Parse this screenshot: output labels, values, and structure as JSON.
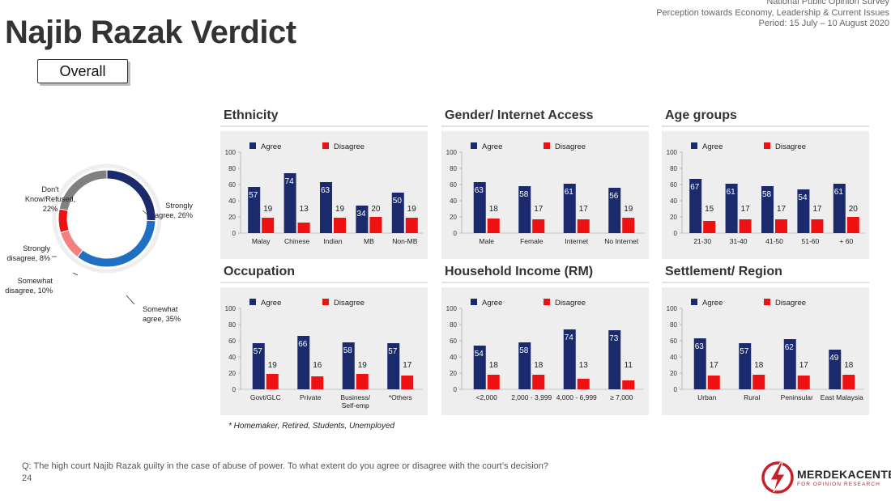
{
  "header": {
    "title": "Najib Razak Verdict",
    "tag": "Overall",
    "survey_lines": [
      "National Public Opinion Survey",
      "Perception towards Economy, Leadership & Current Issues",
      "Period: 15 July – 10 August 2020"
    ]
  },
  "colors": {
    "agree": "#1a2a6c",
    "disagree": "#ee1111",
    "strongly_agree": "#1a2a6c",
    "somewhat_agree": "#1f6fc2",
    "somewhat_disagree": "#f28080",
    "strongly_disagree": "#ee1111",
    "dont_know": "#808080"
  },
  "chart_data": [
    {
      "type": "pie",
      "title": "",
      "slices": [
        {
          "label": "Strongly agree, 26%",
          "value": 26,
          "color": "#1a2a6c"
        },
        {
          "label": "Somewhat agree, 35%",
          "value": 35,
          "color": "#1f6fc2"
        },
        {
          "label": "Somewhat disagree, 10%",
          "value": 10,
          "color": "#f28080"
        },
        {
          "label": "Strongly disagree, 8%",
          "value": 8,
          "color": "#ee1111"
        },
        {
          "label": "Don't Know/Refused, 22%",
          "value": 22,
          "color": "#808080"
        }
      ]
    },
    {
      "type": "bar",
      "title": "Ethnicity",
      "categories": [
        "Malay",
        "Chinese",
        "Indian",
        "MB",
        "Non-MB"
      ],
      "series": [
        {
          "name": "Agree",
          "values": [
            57,
            74,
            63,
            34,
            50
          ]
        },
        {
          "name": "Disagree",
          "values": [
            19,
            13,
            19,
            20,
            19
          ]
        }
      ],
      "ylim": [
        0,
        100
      ],
      "yticks": [
        0,
        20,
        40,
        60,
        80,
        100
      ],
      "legend": "top"
    },
    {
      "type": "bar",
      "title": "Gender/ Internet Access",
      "categories": [
        "Male",
        "Female",
        "Internet",
        "No Internet"
      ],
      "series": [
        {
          "name": "Agree",
          "values": [
            63,
            58,
            61,
            56
          ]
        },
        {
          "name": "Disagree",
          "values": [
            18,
            17,
            17,
            19
          ]
        }
      ],
      "ylim": [
        0,
        100
      ],
      "yticks": [
        0,
        20,
        40,
        60,
        80,
        100
      ],
      "legend": "top"
    },
    {
      "type": "bar",
      "title": "Age groups",
      "categories": [
        "21-30",
        "31-40",
        "41-50",
        "51-60",
        "+ 60"
      ],
      "series": [
        {
          "name": "Agree",
          "values": [
            67,
            61,
            58,
            54,
            61
          ]
        },
        {
          "name": "Disagree",
          "values": [
            15,
            17,
            17,
            17,
            20
          ]
        }
      ],
      "ylim": [
        0,
        100
      ],
      "yticks": [
        0,
        20,
        40,
        60,
        80,
        100
      ],
      "legend": "top"
    },
    {
      "type": "bar",
      "title": "Occupation",
      "categories": [
        "Govt/GLC",
        "Private",
        "Business/ Self-emp",
        "*Others"
      ],
      "series": [
        {
          "name": "Agree",
          "values": [
            57,
            66,
            58,
            57
          ]
        },
        {
          "name": "Disagree",
          "values": [
            19,
            16,
            19,
            17
          ]
        }
      ],
      "ylim": [
        0,
        100
      ],
      "yticks": [
        0,
        20,
        40,
        60,
        80,
        100
      ],
      "legend": "top"
    },
    {
      "type": "bar",
      "title": "Household Income (RM)",
      "categories": [
        "<2,000",
        "2,000 - 3,999",
        "4,000 - 6,999",
        "≥ 7,000"
      ],
      "series": [
        {
          "name": "Agree",
          "values": [
            54,
            58,
            74,
            73
          ]
        },
        {
          "name": "Disagree",
          "values": [
            18,
            18,
            13,
            11
          ]
        }
      ],
      "ylim": [
        0,
        100
      ],
      "yticks": [
        0,
        20,
        40,
        60,
        80,
        100
      ],
      "legend": "top"
    },
    {
      "type": "bar",
      "title": "Settlement/ Region",
      "categories": [
        "Urban",
        "Rural",
        "Peninsular",
        "East Malaysia"
      ],
      "series": [
        {
          "name": "Agree",
          "values": [
            63,
            57,
            62,
            49
          ]
        },
        {
          "name": "Disagree",
          "values": [
            17,
            18,
            17,
            18
          ]
        }
      ],
      "ylim": [
        0,
        100
      ],
      "yticks": [
        0,
        20,
        40,
        60,
        80,
        100
      ],
      "legend": "top"
    }
  ],
  "footnote": "* Homemaker, Retired, Students, Unemployed",
  "question": "Q: The high court Najib Razak guilty in the case of abuse of power. To what extent do you agree or disagree with the court’s decision?",
  "page_number": "24",
  "logo": {
    "name": "MERDEKACENTER",
    "subtitle": "FOR OPINION RESEARCH"
  }
}
